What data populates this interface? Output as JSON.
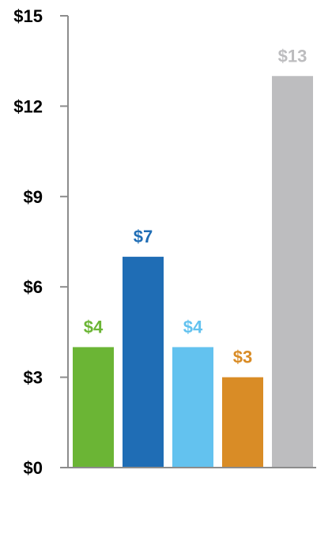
{
  "chart_data": {
    "type": "bar",
    "categories": [
      "",
      "",
      "",
      "",
      ""
    ],
    "values": [
      4,
      7,
      4,
      3,
      13
    ],
    "data_labels": [
      "$4",
      "$7",
      "$4",
      "$3",
      "$13"
    ],
    "colors": [
      "#6bb535",
      "#1f6db5",
      "#63c2ef",
      "#d98c26",
      "#bdbdbf"
    ],
    "y_ticks": [
      0,
      3,
      6,
      9,
      12,
      15
    ],
    "y_tick_labels": [
      "$0",
      "$3",
      "$6",
      "$9",
      "$12",
      "$15"
    ],
    "ylim": [
      0,
      15
    ],
    "grid": false,
    "legend": "none",
    "title": "",
    "xlabel": "",
    "ylabel": ""
  }
}
